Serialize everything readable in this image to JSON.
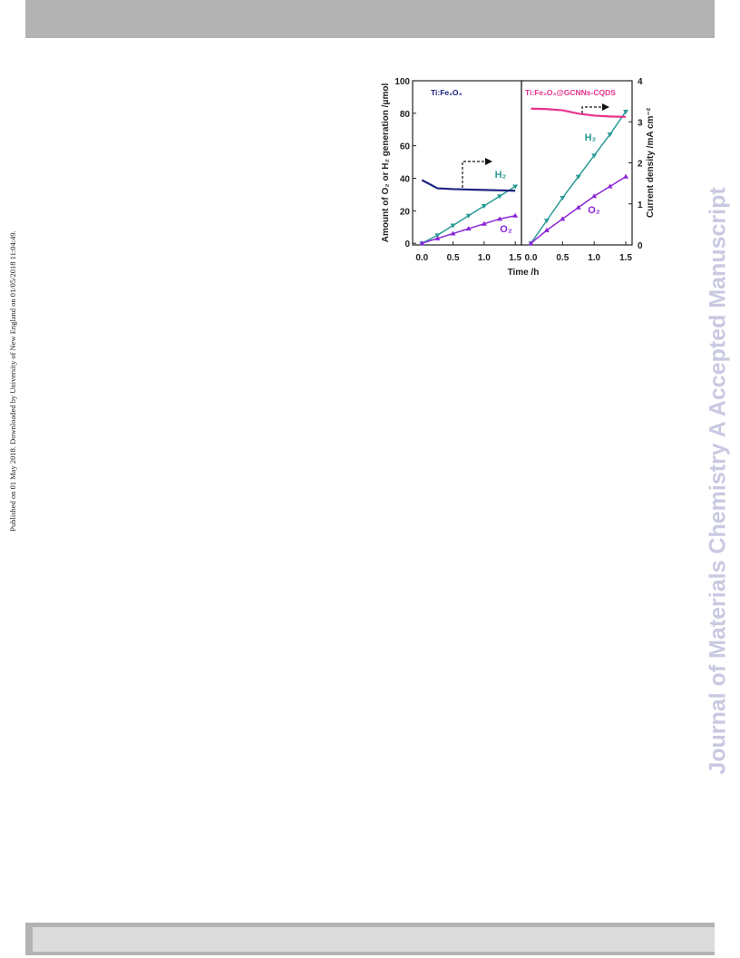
{
  "sidebar": "Published on 01 May 2018. Downloaded by University of New England on 01/05/2018 11:04:49.",
  "watermark": "Journal of Materials Chemistry A Accepted Manuscript",
  "chart_data": [
    {
      "type": "line",
      "title": "Ti:Fe₂O₃",
      "ylabel": "Amount of O₂ or H₂ generation /μmol",
      "xlabel": "Time /h",
      "x": [
        0,
        0.25,
        0.5,
        0.75,
        1.0,
        1.25,
        1.5
      ],
      "xlim": [
        -0.15,
        1.6
      ],
      "xticks": [
        {
          "value": 0,
          "label": "0.0"
        },
        0.5,
        {
          "value": 1.0,
          "label": "1.0"
        },
        1.5
      ],
      "ylim": [
        -1,
        100
      ],
      "yticks": [
        0,
        20,
        40,
        60,
        80,
        100
      ],
      "y2lim": [
        0,
        4
      ],
      "series": [
        {
          "name": "H₂",
          "color": "#2a9a96",
          "values": [
            0,
            5,
            11,
            17,
            23,
            29,
            35
          ]
        },
        {
          "name": "O₂",
          "color": "#8b25d6",
          "values": [
            0,
            3,
            6,
            9,
            12,
            15,
            17
          ]
        },
        {
          "color": "#1a237e",
          "axis": "y2",
          "values": [
            1.58,
            1.38,
            1.36,
            1.35,
            1.34,
            1.33,
            1.32
          ]
        }
      ]
    },
    {
      "type": "line",
      "title": "Ti:Fe₂O₃@GCNNs-CQDS",
      "y2label": "Current density /mA cm⁻²",
      "x": [
        0,
        0.25,
        0.5,
        0.75,
        1.0,
        1.25,
        1.5
      ],
      "xlim": [
        -0.15,
        1.6
      ],
      "xticks": [
        {
          "value": 0,
          "label": "0.0"
        },
        0.5,
        {
          "value": 1.0,
          "label": "1.0"
        },
        1.5
      ],
      "ylim": [
        -1,
        100
      ],
      "y2lim": [
        0,
        4
      ],
      "y2ticks": [
        0,
        1,
        2,
        3,
        4
      ],
      "series": [
        {
          "name": "H₂",
          "color": "#2a9a96",
          "values": [
            0,
            14,
            28,
            41,
            54,
            67,
            81
          ]
        },
        {
          "name": "O₂",
          "color": "#8b25d6",
          "values": [
            0,
            8,
            15,
            22,
            29,
            35,
            41
          ]
        },
        {
          "color": "#e8338a",
          "axis": "y2",
          "values": [
            3.32,
            3.31,
            3.28,
            3.2,
            3.15,
            3.13,
            3.12
          ]
        }
      ]
    }
  ]
}
